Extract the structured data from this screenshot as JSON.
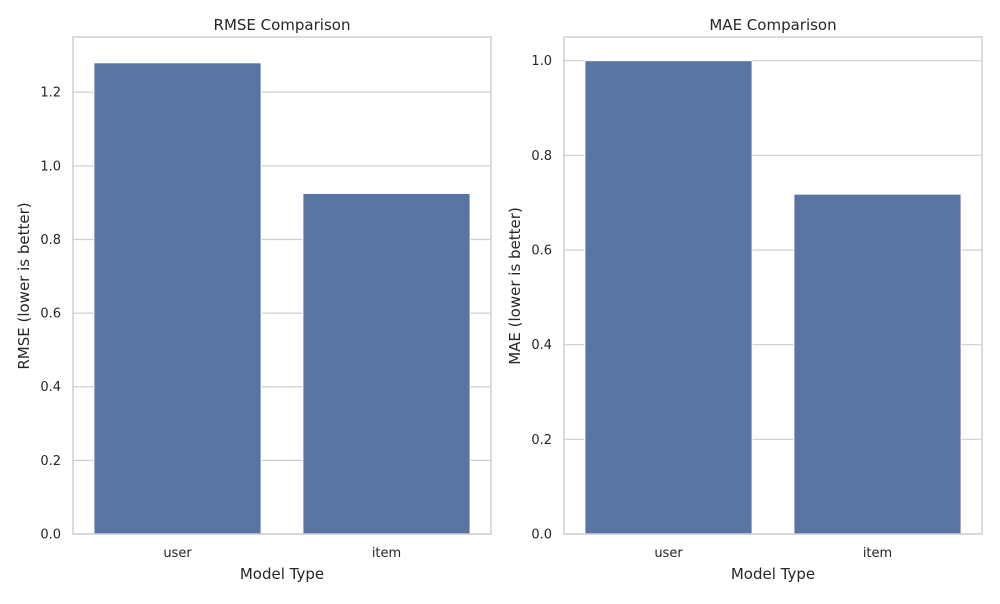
{
  "colors": {
    "bar": "#5875a4",
    "grid": "#cfcfcf",
    "spine": "#cfcfcf",
    "text": "#262626",
    "background": "#ffffff"
  },
  "chart_data": [
    {
      "type": "bar",
      "title": "RMSE Comparison",
      "xlabel": "Model Type",
      "ylabel": "RMSE (lower is better)",
      "categories": [
        "user",
        "item"
      ],
      "values": [
        1.28,
        0.925
      ],
      "ylim": [
        0,
        1.35
      ],
      "yticks": [
        0.0,
        0.2,
        0.4,
        0.6,
        0.8,
        1.0,
        1.2
      ],
      "ytick_labels": [
        "0.0",
        "0.2",
        "0.4",
        "0.6",
        "0.8",
        "1.0",
        "1.2"
      ],
      "grid": "y"
    },
    {
      "type": "bar",
      "title": "MAE Comparison",
      "xlabel": "Model Type",
      "ylabel": "MAE (lower is better)",
      "categories": [
        "user",
        "item"
      ],
      "values": [
        1.0,
        0.718
      ],
      "ylim": [
        0,
        1.05
      ],
      "yticks": [
        0.0,
        0.2,
        0.4,
        0.6,
        0.8,
        1.0
      ],
      "ytick_labels": [
        "0.0",
        "0.2",
        "0.4",
        "0.6",
        "0.8",
        "1.0"
      ],
      "grid": "y"
    }
  ]
}
